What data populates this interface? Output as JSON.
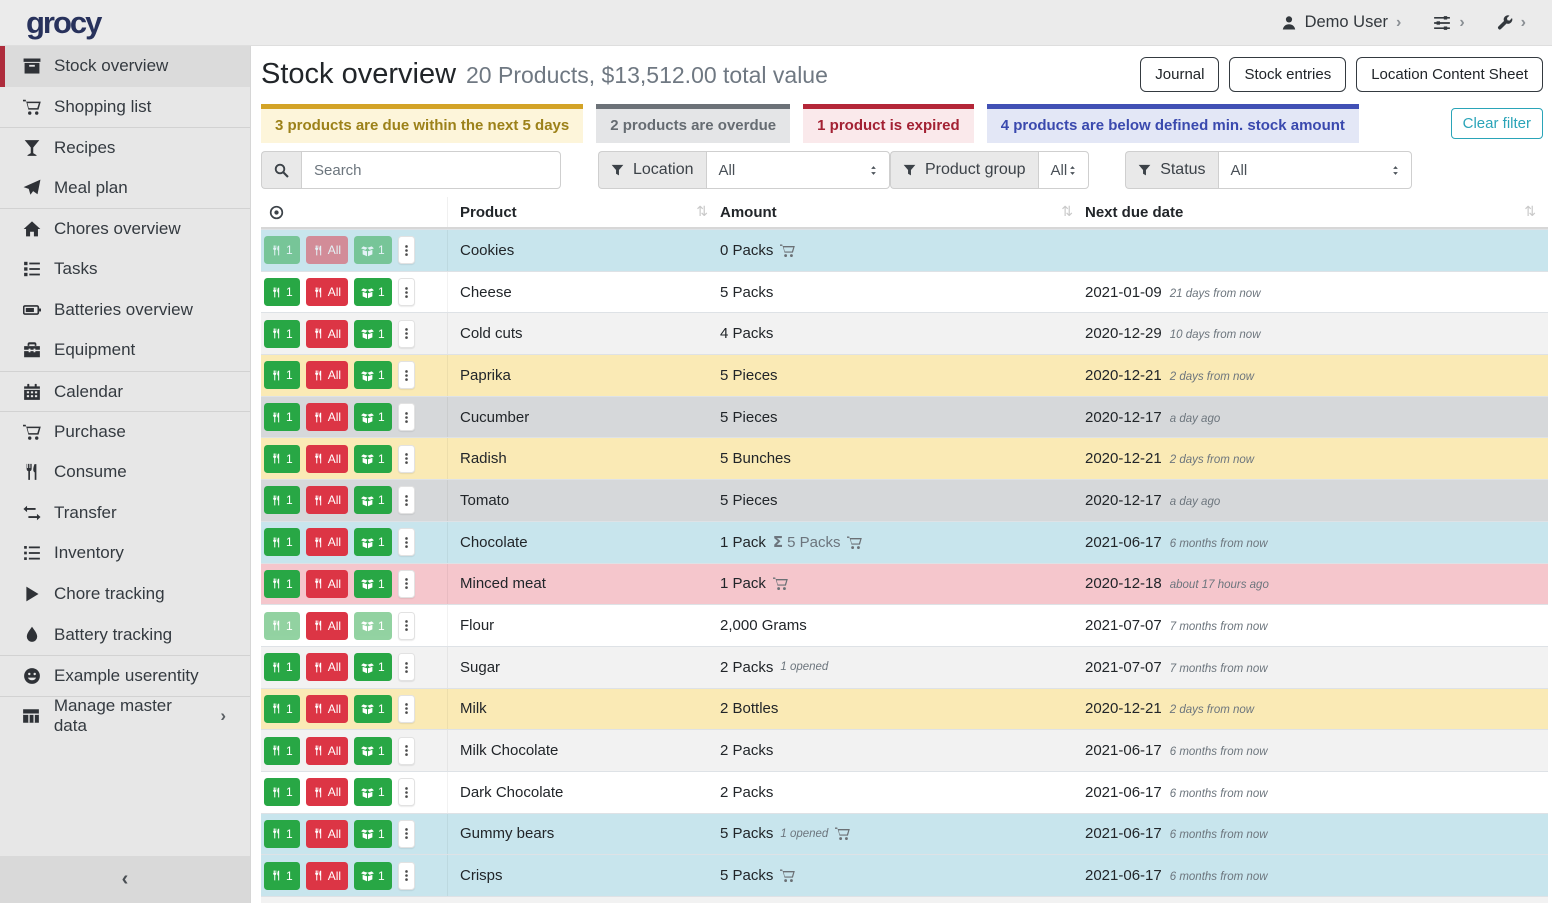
{
  "colors": {
    "logo_navy": "#28325c",
    "active_accent_red": "#ae2c3c",
    "banner_due_border": "#d3a326",
    "banner_overdue_border": "#6c7278",
    "banner_expired_border": "#b42638",
    "banner_belowmin_border": "#4150b5",
    "row_info": "#c8e5ed",
    "row_warning": "#faeab5",
    "row_secondary": "#d6d8da",
    "row_danger": "#f5c6cc",
    "row_stripe": "#f2f2f2",
    "btn_green": "#28a745",
    "btn_red": "#dc3545",
    "clear_filter_teal": "#2aa4b8"
  },
  "topbar": {
    "logo": "grocy",
    "user_label": "Demo User"
  },
  "sidebar": {
    "items": [
      {
        "icon": "box",
        "label": "Stock overview",
        "active": true
      },
      {
        "icon": "cart",
        "label": "Shopping list"
      },
      {
        "icon": "cocktail",
        "label": "Recipes",
        "divider": true
      },
      {
        "icon": "paper-plane",
        "label": "Meal plan"
      },
      {
        "icon": "home",
        "label": "Chores overview",
        "divider": true
      },
      {
        "icon": "tasks",
        "label": "Tasks"
      },
      {
        "icon": "battery",
        "label": "Batteries overview"
      },
      {
        "icon": "toolbox",
        "label": "Equipment"
      },
      {
        "icon": "calendar",
        "label": "Calendar",
        "divider": true
      },
      {
        "icon": "cart",
        "label": "Purchase",
        "divider": true
      },
      {
        "icon": "utensils",
        "label": "Consume"
      },
      {
        "icon": "exchange",
        "label": "Transfer"
      },
      {
        "icon": "list",
        "label": "Inventory"
      },
      {
        "icon": "play",
        "label": "Chore tracking"
      },
      {
        "icon": "flame",
        "label": "Battery tracking"
      },
      {
        "icon": "smiley",
        "label": "Example userentity",
        "divider": true
      },
      {
        "icon": "table",
        "label": "Manage master data",
        "divider": true,
        "chevron": true
      }
    ]
  },
  "page": {
    "title": "Stock overview",
    "subtitle": "20 Products, $13,512.00 total value",
    "actions": [
      {
        "label": "Journal"
      },
      {
        "label": "Stock entries"
      },
      {
        "label": "Location Content Sheet"
      }
    ],
    "clear_filter_label": "Clear filter"
  },
  "banners": [
    {
      "type": "due",
      "text": "3 products are due within the next 5 days"
    },
    {
      "type": "overdue",
      "text": "2 products are overdue"
    },
    {
      "type": "expired",
      "text": "1 product is expired"
    },
    {
      "type": "belowmin",
      "text": "4 products are below defined min. stock amount"
    }
  ],
  "filters": {
    "search_placeholder": "Search",
    "groups": [
      {
        "label": "Location",
        "value": "All"
      },
      {
        "label": "Product group",
        "value": "All"
      },
      {
        "label": "Status",
        "value": "All"
      }
    ]
  },
  "table": {
    "columns": [
      "Product",
      "Amount",
      "Next due date"
    ],
    "buttons": {
      "consume_one": "1",
      "consume_all": "All",
      "open_one": "1"
    },
    "rows": [
      {
        "product": "Cookies",
        "amount": "0 Packs",
        "cart": true,
        "color": "info",
        "faded": [
          "c1",
          "ca",
          "o1"
        ],
        "date": "",
        "relative": ""
      },
      {
        "product": "Cheese",
        "amount": "5 Packs",
        "color": "",
        "date": "2021-01-09",
        "relative": "21 days from now"
      },
      {
        "product": "Cold cuts",
        "amount": "4 Packs",
        "color": "stripe",
        "date": "2020-12-29",
        "relative": "10 days from now"
      },
      {
        "product": "Paprika",
        "amount": "5 Pieces",
        "color": "warning",
        "date": "2020-12-21",
        "relative": "2 days from now"
      },
      {
        "product": "Cucumber",
        "amount": "5 Pieces",
        "color": "secondary",
        "date": "2020-12-17",
        "relative": "a day ago"
      },
      {
        "product": "Radish",
        "amount": "5 Bunches",
        "color": "warning",
        "date": "2020-12-21",
        "relative": "2 days from now"
      },
      {
        "product": "Tomato",
        "amount": "5 Pieces",
        "color": "secondary",
        "date": "2020-12-17",
        "relative": "a day ago"
      },
      {
        "product": "Chocolate",
        "amount": "1 Pack",
        "sum": "5 Packs",
        "cart": true,
        "color": "info",
        "date": "2021-06-17",
        "relative": "6 months from now"
      },
      {
        "product": "Minced meat",
        "amount": "1 Pack",
        "cart": true,
        "color": "danger",
        "date": "2020-12-18",
        "relative": "about 17 hours ago"
      },
      {
        "product": "Flour",
        "amount": "2,000 Grams",
        "color": "",
        "faded": [
          "c1",
          "o1"
        ],
        "date": "2021-07-07",
        "relative": "7 months from now"
      },
      {
        "product": "Sugar",
        "amount": "2 Packs",
        "opened": "1 opened",
        "color": "stripe",
        "date": "2021-07-07",
        "relative": "7 months from now"
      },
      {
        "product": "Milk",
        "amount": "2 Bottles",
        "color": "warning",
        "date": "2020-12-21",
        "relative": "2 days from now"
      },
      {
        "product": "Milk Chocolate",
        "amount": "2 Packs",
        "color": "stripe",
        "date": "2021-06-17",
        "relative": "6 months from now"
      },
      {
        "product": "Dark Chocolate",
        "amount": "2 Packs",
        "color": "",
        "date": "2021-06-17",
        "relative": "6 months from now"
      },
      {
        "product": "Gummy bears",
        "amount": "5 Packs",
        "opened": "1 opened",
        "cart": true,
        "color": "info",
        "date": "2021-06-17",
        "relative": "6 months from now"
      },
      {
        "product": "Crisps",
        "amount": "5 Packs",
        "cart": true,
        "color": "info",
        "date": "2021-06-17",
        "relative": "6 months from now"
      }
    ]
  }
}
